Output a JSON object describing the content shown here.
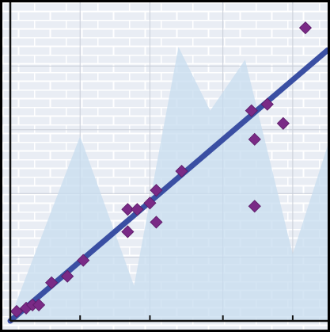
{
  "chart_data": {
    "type": "scatter",
    "title": "",
    "xlabel": "",
    "ylabel": "",
    "xlim": [
      0,
      1
    ],
    "ylim": [
      0,
      1
    ],
    "grid": true,
    "background": {
      "style": "brick-wall",
      "color": "#e9edf4",
      "mortar_color": "#ffffff"
    },
    "colors": {
      "points": "#7a2a86",
      "trendline": "#3a4fa3",
      "area": "#c7dcef",
      "axis": "#111111",
      "frame": "#000000"
    },
    "area_series": {
      "x": [
        0.0,
        0.22,
        0.39,
        0.53,
        0.63,
        0.74,
        0.89,
        1.0
      ],
      "y": [
        0.01,
        0.58,
        0.11,
        0.86,
        0.66,
        0.82,
        0.21,
        0.55
      ]
    },
    "points": {
      "x": [
        0.02,
        0.05,
        0.07,
        0.09,
        0.13,
        0.18,
        0.23,
        0.37,
        0.4,
        0.44,
        0.46,
        0.37,
        0.46,
        0.54,
        0.76,
        0.77,
        0.77,
        0.81,
        0.86,
        0.93
      ],
      "y": [
        0.03,
        0.04,
        0.05,
        0.05,
        0.12,
        0.14,
        0.19,
        0.35,
        0.35,
        0.37,
        0.41,
        0.28,
        0.31,
        0.47,
        0.66,
        0.57,
        0.36,
        0.68,
        0.62,
        0.92
      ]
    },
    "trendline": {
      "x": [
        0.0,
        1.0
      ],
      "y": [
        0.0,
        0.85
      ]
    },
    "ticks": {
      "x": [
        0.22,
        0.44,
        0.67,
        0.89
      ]
    }
  }
}
